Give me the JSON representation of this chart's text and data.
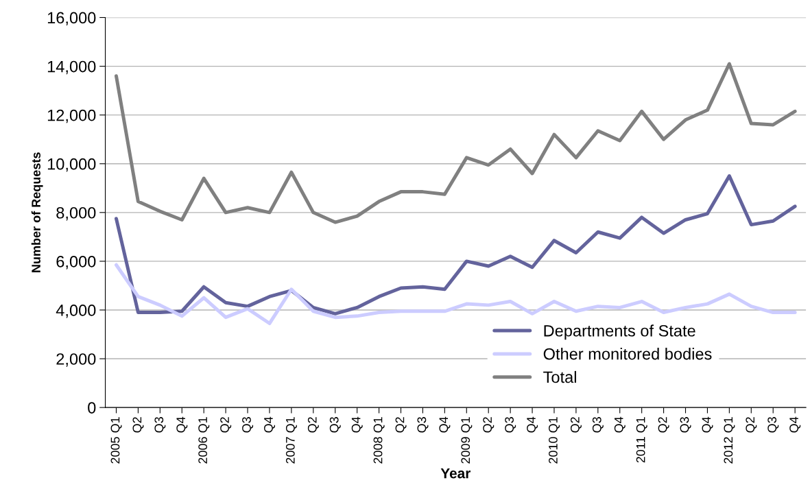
{
  "chart_data": {
    "type": "line",
    "xlabel": "Year",
    "ylabel": "Number of Requests",
    "categories": [
      "2005 Q1",
      "Q2",
      "Q3",
      "Q4",
      "2006 Q1",
      "Q2",
      "Q3",
      "Q4",
      "2007 Q1",
      "Q2",
      "Q3",
      "Q4",
      "2008 Q1",
      "Q2",
      "Q3",
      "Q4",
      "2009 Q1",
      "Q2",
      "Q3",
      "Q4",
      "2010 Q1",
      "Q2",
      "Q3",
      "Q4",
      "2011 Q1",
      "Q2",
      "Q3",
      "Q4",
      "2012 Q1",
      "Q2",
      "Q3",
      "Q4"
    ],
    "series": [
      {
        "name": "Departments of State",
        "color": "#63639c",
        "values": [
          7750,
          3900,
          3900,
          3950,
          4950,
          4300,
          4150,
          4550,
          4800,
          4100,
          3850,
          4100,
          4550,
          4900,
          4950,
          4850,
          6000,
          5800,
          6200,
          5750,
          6850,
          6350,
          7200,
          6950,
          7800,
          7150,
          7700,
          7950,
          9500,
          7500,
          7650,
          8250
        ]
      },
      {
        "name": "Other monitored bodies",
        "color": "#ccccff",
        "values": [
          5850,
          4550,
          4200,
          3750,
          4500,
          3700,
          4050,
          3450,
          4850,
          3950,
          3700,
          3750,
          3900,
          3950,
          3950,
          3950,
          4250,
          4200,
          4350,
          3850,
          4350,
          3950,
          4150,
          4100,
          4350,
          3900,
          4100,
          4250,
          4650,
          4150,
          3900,
          3900
        ]
      },
      {
        "name": "Total",
        "color": "#808080",
        "values": [
          13600,
          8450,
          8050,
          7700,
          9400,
          8000,
          8200,
          8000,
          9650,
          8000,
          7600,
          7850,
          8450,
          8850,
          8850,
          8750,
          10250,
          9950,
          10600,
          9600,
          11200,
          10250,
          11350,
          10950,
          12150,
          11000,
          11800,
          12200,
          14100,
          11650,
          11600,
          12150
        ]
      }
    ],
    "ylim": [
      0,
      16000
    ],
    "yticks": [
      {
        "value": 0,
        "label": "0"
      },
      {
        "value": 2000,
        "label": "2,000"
      },
      {
        "value": 4000,
        "label": "4,000"
      },
      {
        "value": 6000,
        "label": "6,000"
      },
      {
        "value": 8000,
        "label": "8,000"
      },
      {
        "value": 10000,
        "label": "10,000"
      },
      {
        "value": 12000,
        "label": "12,000"
      },
      {
        "value": 14000,
        "label": "14,000"
      },
      {
        "value": 16000,
        "label": "16,000"
      }
    ],
    "grid": "y",
    "legend": "bottom right",
    "marker": "none",
    "line_style": "solid"
  }
}
